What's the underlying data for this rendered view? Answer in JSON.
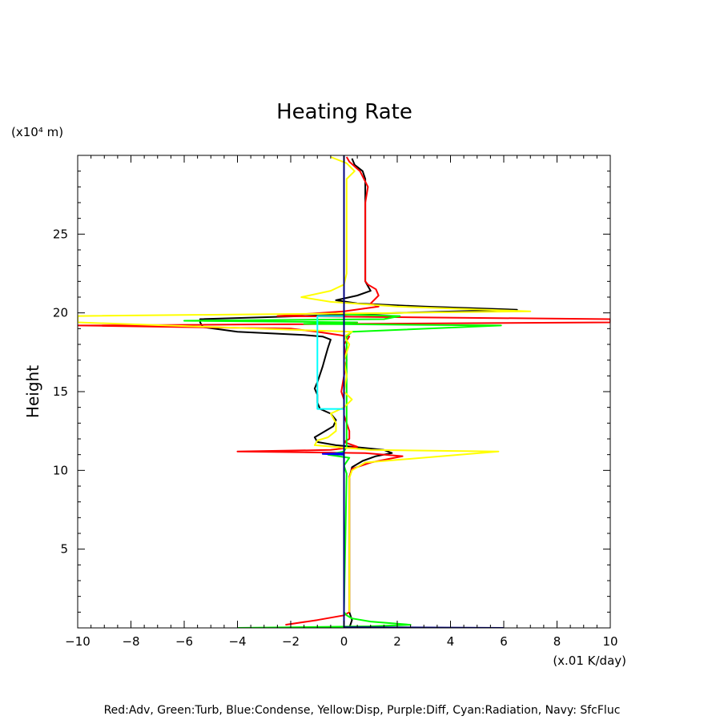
{
  "chart_data": {
    "type": "line",
    "title": "Heating Rate",
    "ylabel": "Height",
    "yunit": "(x10⁴ m)",
    "xunit": "(x.01 K/day)",
    "xlim": [
      -10,
      10
    ],
    "ylim": [
      0,
      30
    ],
    "xticks": [
      -10,
      -8,
      -6,
      -4,
      -2,
      0,
      2,
      4,
      6,
      8,
      10
    ],
    "xtick_labels": [
      "−10",
      "−8",
      "−6",
      "−4",
      "−2",
      "0",
      "2",
      "4",
      "6",
      "8",
      "10"
    ],
    "yticks": [
      5,
      10,
      15,
      20,
      25
    ],
    "ytick_labels": [
      "5",
      "10",
      "15",
      "20",
      "25"
    ],
    "grid": false,
    "legend_text": "Red:Adv, Green:Turb, Blue:Condense, Yellow:Disp, Purple:Diff, Cyan:Radiation, Navy: SfcFluc",
    "series": [
      {
        "color": "#000000",
        "points": [
          [
            0.2,
            0.0
          ],
          [
            0.3,
            0.5
          ],
          [
            0.2,
            1.0
          ],
          [
            0.2,
            5.0
          ],
          [
            0.2,
            9.5
          ],
          [
            0.3,
            10.2
          ],
          [
            0.7,
            10.6
          ],
          [
            1.2,
            10.9
          ],
          [
            1.8,
            11.1
          ],
          [
            1.5,
            11.3
          ],
          [
            0.3,
            11.5
          ],
          [
            -0.3,
            11.6
          ],
          [
            -1.0,
            11.8
          ],
          [
            -1.1,
            12.1
          ],
          [
            -0.8,
            12.4
          ],
          [
            -0.4,
            12.8
          ],
          [
            -0.3,
            13.2
          ],
          [
            -0.5,
            13.6
          ],
          [
            -0.9,
            13.9
          ],
          [
            -1.0,
            14.3
          ],
          [
            -1.0,
            14.8
          ],
          [
            -1.1,
            15.2
          ],
          [
            -1.0,
            15.6
          ],
          [
            -0.9,
            16.1
          ],
          [
            -0.8,
            16.6
          ],
          [
            -0.7,
            17.2
          ],
          [
            -0.6,
            17.8
          ],
          [
            -0.5,
            18.3
          ],
          [
            -0.8,
            18.5
          ],
          [
            -1.5,
            18.6
          ],
          [
            -4.0,
            18.8
          ],
          [
            -5.3,
            19.1
          ],
          [
            -5.4,
            19.4
          ],
          [
            -5.4,
            19.6
          ],
          [
            -1.5,
            19.8
          ],
          [
            2.0,
            20.0
          ],
          [
            6.5,
            20.2
          ],
          [
            3.0,
            20.4
          ],
          [
            0.5,
            20.6
          ],
          [
            -0.3,
            20.8
          ],
          [
            0.5,
            21.1
          ],
          [
            1.0,
            21.4
          ],
          [
            0.9,
            21.7
          ],
          [
            0.8,
            22.0
          ],
          [
            0.8,
            23.0
          ],
          [
            0.8,
            25.0
          ],
          [
            0.8,
            27.0
          ],
          [
            0.8,
            28.5
          ],
          [
            0.7,
            29.0
          ],
          [
            0.4,
            29.4
          ],
          [
            0.3,
            29.8
          ]
        ]
      },
      {
        "color": "#ff0000",
        "points": [
          [
            -2.2,
            0.2
          ],
          [
            -1.0,
            0.5
          ],
          [
            0.0,
            0.8
          ],
          [
            0.2,
            1.0
          ],
          [
            0.2,
            5.0
          ],
          [
            0.2,
            9.6
          ],
          [
            0.3,
            10.1
          ],
          [
            1.0,
            10.5
          ],
          [
            2.2,
            10.9
          ],
          [
            0.8,
            11.1
          ],
          [
            -4.0,
            11.2
          ],
          [
            -0.5,
            11.3
          ],
          [
            0.5,
            11.5
          ],
          [
            0.0,
            11.8
          ],
          [
            0.2,
            12.0
          ],
          [
            0.2,
            12.5
          ],
          [
            0.0,
            13.5
          ],
          [
            0.0,
            14.5
          ],
          [
            -0.1,
            15.0
          ],
          [
            0.0,
            16.0
          ],
          [
            0.1,
            17.0
          ],
          [
            0.0,
            18.0
          ],
          [
            0.2,
            18.5
          ],
          [
            -1.0,
            18.8
          ],
          [
            -2.0,
            19.0
          ],
          [
            -10.0,
            19.2
          ],
          [
            10.0,
            19.4
          ],
          [
            10.0,
            19.6
          ],
          [
            -2.5,
            19.8
          ],
          [
            0.0,
            20.1
          ],
          [
            1.3,
            20.4
          ],
          [
            1.0,
            20.6
          ],
          [
            1.3,
            21.1
          ],
          [
            1.2,
            21.5
          ],
          [
            0.9,
            21.8
          ],
          [
            0.8,
            22.0
          ],
          [
            0.8,
            23.0
          ],
          [
            0.8,
            25.0
          ],
          [
            0.8,
            27.0
          ],
          [
            0.9,
            28.0
          ],
          [
            0.6,
            29.0
          ],
          [
            0.2,
            29.6
          ],
          [
            0.1,
            29.9
          ]
        ]
      },
      {
        "color": "#00ff00",
        "points": [
          [
            -4.0,
            0.0
          ],
          [
            1.0,
            0.1
          ],
          [
            2.5,
            0.2
          ],
          [
            1.0,
            0.4
          ],
          [
            0.3,
            0.6
          ],
          [
            0.1,
            0.8
          ],
          [
            0.0,
            1.0
          ],
          [
            0.1,
            9.8
          ],
          [
            0.0,
            10.3
          ],
          [
            0.2,
            10.8
          ],
          [
            -0.6,
            11.0
          ],
          [
            0.0,
            11.2
          ],
          [
            0.1,
            11.5
          ],
          [
            0.1,
            18.5
          ],
          [
            0.3,
            18.8
          ],
          [
            5.9,
            19.2
          ],
          [
            -1.5,
            19.3
          ],
          [
            0.5,
            19.4
          ],
          [
            -6.0,
            19.5
          ],
          [
            1.5,
            19.6
          ],
          [
            2.1,
            19.8
          ],
          [
            0.0,
            19.9
          ]
        ]
      },
      {
        "color": "#0000ff",
        "points": [
          [
            0.0,
            0.0
          ],
          [
            0.0,
            11.0
          ],
          [
            -0.8,
            11.05
          ],
          [
            0.0,
            11.1
          ],
          [
            0.0,
            30.0
          ]
        ]
      },
      {
        "color": "#ffff00",
        "points": [
          [
            0.2,
            1.0
          ],
          [
            0.2,
            5.0
          ],
          [
            0.2,
            9.5
          ],
          [
            0.3,
            10.0
          ],
          [
            0.8,
            10.5
          ],
          [
            5.8,
            11.2
          ],
          [
            1.0,
            11.3
          ],
          [
            -1.1,
            11.6
          ],
          [
            -1.0,
            11.9
          ],
          [
            -0.6,
            12.1
          ],
          [
            -0.3,
            12.5
          ],
          [
            -0.3,
            13.0
          ],
          [
            -0.5,
            13.6
          ],
          [
            0.0,
            14.0
          ],
          [
            0.3,
            14.5
          ],
          [
            0.0,
            15.0
          ],
          [
            0.1,
            16.0
          ],
          [
            0.0,
            17.0
          ],
          [
            0.2,
            18.0
          ],
          [
            0.0,
            18.5
          ],
          [
            0.3,
            18.8
          ],
          [
            -10.0,
            19.4
          ],
          [
            -10.0,
            19.8
          ],
          [
            2.0,
            20.0
          ],
          [
            7.0,
            20.1
          ],
          [
            2.0,
            20.4
          ],
          [
            -0.5,
            20.7
          ],
          [
            -1.6,
            21.0
          ],
          [
            -0.5,
            21.4
          ],
          [
            0.0,
            21.8
          ],
          [
            0.1,
            22.5
          ],
          [
            0.1,
            25.0
          ],
          [
            0.1,
            27.0
          ],
          [
            0.1,
            28.5
          ],
          [
            0.4,
            29.0
          ],
          [
            0.1,
            29.5
          ],
          [
            -0.5,
            29.9
          ]
        ]
      },
      {
        "color": "#ff00ff",
        "points": [
          [
            0.0,
            0.0
          ],
          [
            0.0,
            30.0
          ]
        ]
      },
      {
        "color": "#00ffff",
        "points": [
          [
            0.0,
            13.9
          ],
          [
            -1.0,
            13.9
          ],
          [
            -1.0,
            19.8
          ],
          [
            0.0,
            19.8
          ]
        ]
      },
      {
        "color": "#000080",
        "points": [
          [
            6.0,
            0.0
          ],
          [
            0.0,
            0.05
          ],
          [
            0.0,
            30.0
          ]
        ]
      }
    ]
  }
}
